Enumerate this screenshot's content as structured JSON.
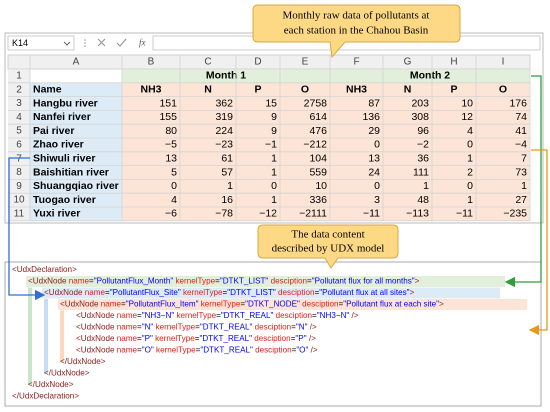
{
  "formula_bar": {
    "name_box": "K14",
    "fx": "fx"
  },
  "callout_top": [
    "Monthly raw data of pollutants at",
    "each station in the Chahou Basin"
  ],
  "callout_bottom": [
    "The data content",
    "described by UDX model"
  ],
  "sheet": {
    "columns": [
      "A",
      "B",
      "C",
      "D",
      "E",
      "F",
      "G",
      "H",
      "I"
    ],
    "row_numbers": [
      "1",
      "2",
      "3",
      "4",
      "5",
      "6",
      "7",
      "8",
      "9",
      "10",
      "11"
    ],
    "month_headers": [
      "Month 1",
      "Month 2"
    ],
    "header": [
      "Name",
      "NH3",
      "N",
      "P",
      "O",
      "NH3",
      "N",
      "P",
      "O"
    ],
    "rows": [
      [
        "Hangbu river",
        "151",
        "362",
        "15",
        "2758",
        "87",
        "203",
        "10",
        "176"
      ],
      [
        "Nanfei river",
        "155",
        "319",
        "9",
        "614",
        "136",
        "308",
        "12",
        "74"
      ],
      [
        "Pai river",
        "80",
        "224",
        "9",
        "476",
        "29",
        "96",
        "4",
        "41"
      ],
      [
        "Zhao river",
        "−5",
        "−23",
        "−1",
        "−212",
        "0",
        "−2",
        "0",
        "−4"
      ],
      [
        "Shiwuli river",
        "13",
        "61",
        "1",
        "104",
        "13",
        "36",
        "1",
        "7"
      ],
      [
        "Baishitian river",
        "5",
        "57",
        "1",
        "559",
        "24",
        "111",
        "2",
        "73"
      ],
      [
        "Shuangqiao river",
        "0",
        "1",
        "0",
        "10",
        "0",
        "1",
        "0",
        "1"
      ],
      [
        "Tuogao river",
        "4",
        "16",
        "1",
        "336",
        "3",
        "48",
        "1",
        "27"
      ],
      [
        "Yuxi river",
        "−6",
        "−78",
        "−12",
        "−2111",
        "−11",
        "−113",
        "−11",
        "−235"
      ]
    ]
  },
  "xml": {
    "lines": [
      "<UdxDeclaration>",
      "<UdxNode name=\"PollutantFlux_Month\" kernelType=\"DTKT_LIST\" desciption=\"Pollutant flux for all months\">",
      "<UdxNode name=\"PollutantFlux_Site\" kernelType=\"DTKT_LIST\" desciption=\"Pollutant flux at all sites\">",
      "<UdxNode name=\"PollutantFlux_Item\" kernelType=\"DTKT_NODE\" desciption=\"Pollutant flux at each site\">",
      "<UdxNode name=\"NH3−N\" kernelType=\"DTKT_REAL\" desciption=\"NH3−N\" />",
      "<UdxNode name=\"N\" kernelType=\"DTKT_REAL\" desciption=\"N\" />",
      "<UdxNode name=\"P\" kernelType=\"DTKT_REAL\" desciption=\"P\" />",
      "<UdxNode name=\"O\" kernelType=\"DTKT_REAL\" desciption=\"O\" />",
      "</UdxNode>",
      "</UdxNode>",
      "</UdxNode>",
      "</UdxDeclaration>"
    ]
  }
}
